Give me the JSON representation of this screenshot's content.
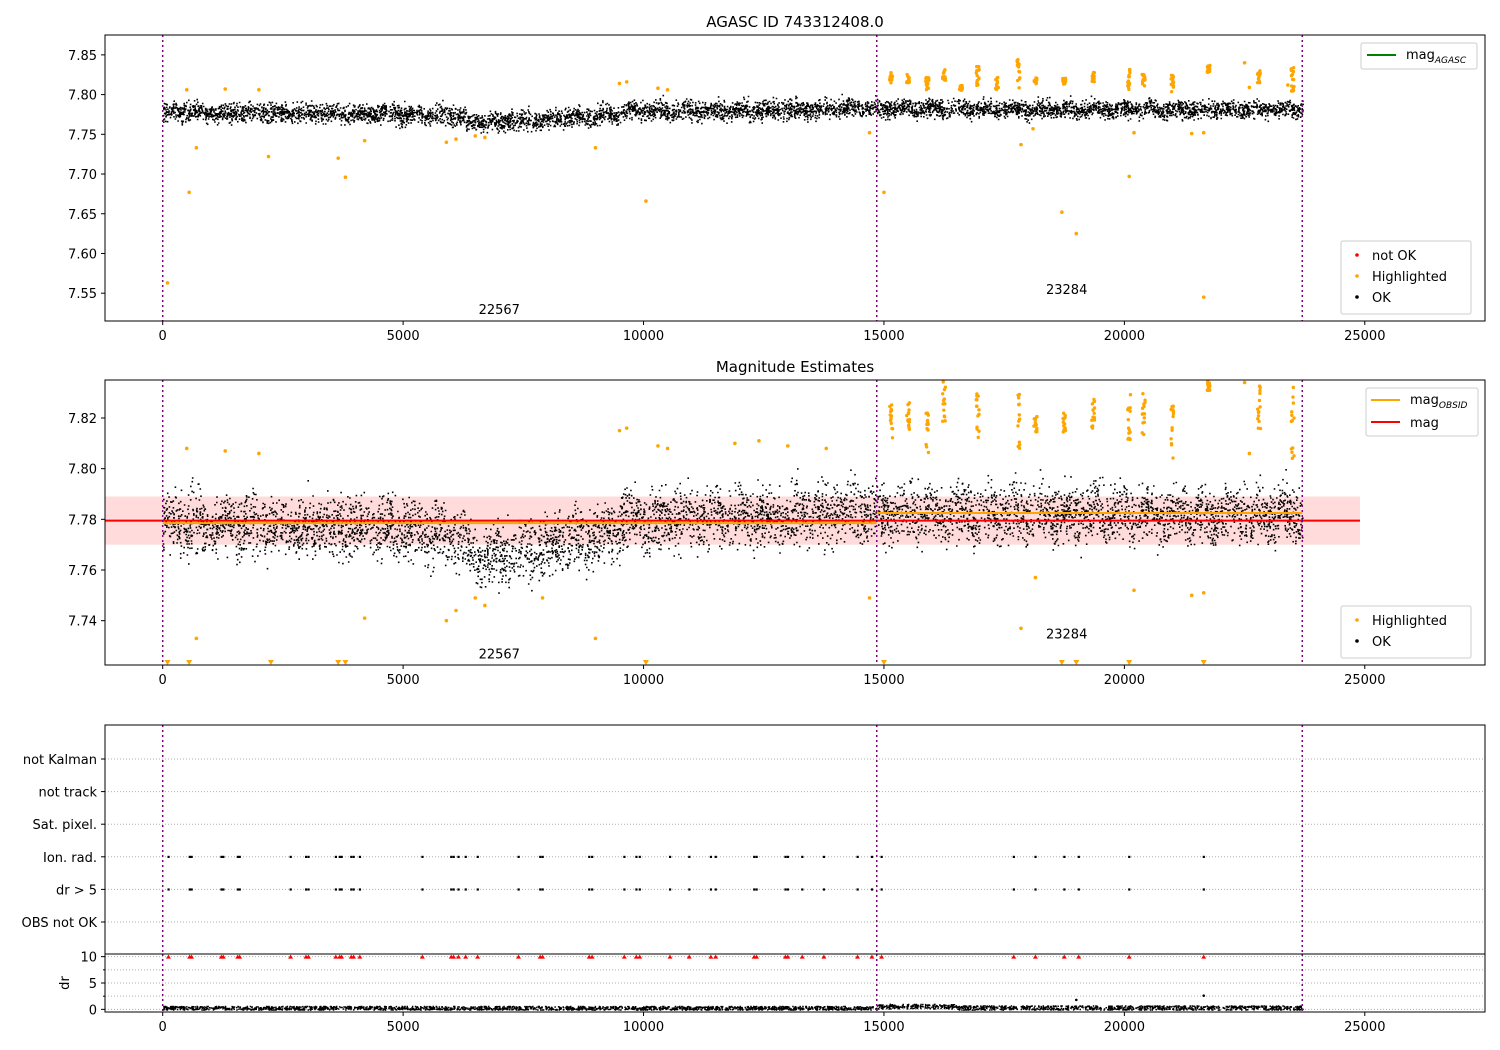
{
  "figure": {
    "x_ticks": [
      0,
      5000,
      10000,
      15000,
      20000,
      25000
    ],
    "xlim": [
      -1200,
      27500
    ],
    "obs_boundaries": [
      0,
      14850,
      23700
    ],
    "boundary_color": "#800080",
    "colors": {
      "ok": "#000000",
      "highlighted": "#ffa500",
      "not_ok": "#ff0000",
      "mag_agasc": "#008000",
      "mag_obsid": "#ffa500",
      "mag": "#ff0000",
      "band": "#ffcccc"
    }
  },
  "chart_data": [
    {
      "type": "scatter",
      "title": "AGASC ID 743312408.0",
      "xlabel": "",
      "ylabel": "",
      "ylim": [
        7.515,
        7.875
      ],
      "y_ticks": [
        "7.55",
        "7.60",
        "7.65",
        "7.70",
        "7.75",
        "7.80",
        "7.85"
      ],
      "y_tick_values": [
        7.55,
        7.6,
        7.65,
        7.7,
        7.75,
        7.8,
        7.85
      ],
      "grid": false,
      "legend_top": {
        "position": "top-right",
        "entries": [
          {
            "label_main": "mag",
            "label_sub": "AGASC",
            "color": "#008000"
          }
        ]
      },
      "legend_bottom": {
        "position": "bottom-right",
        "entries": [
          {
            "label": "not OK",
            "color": "#ff0000"
          },
          {
            "label": "Highlighted",
            "color": "#ffa500"
          },
          {
            "label": "OK",
            "color": "#000000"
          }
        ]
      },
      "annotations": [
        {
          "text": "22567",
          "x": 7000,
          "y": 7.53
        },
        {
          "text": "23284",
          "x": 18800,
          "y": 7.555
        }
      ],
      "ok_segments": [
        {
          "x0": 0,
          "x1": 1500,
          "y0": 7.779,
          "y1": 7.778,
          "spread": 0.012
        },
        {
          "x0": 1500,
          "x1": 4500,
          "y0": 7.778,
          "y1": 7.777,
          "spread": 0.012
        },
        {
          "x0": 4500,
          "x1": 6300,
          "y0": 7.777,
          "y1": 7.774,
          "spread": 0.012
        },
        {
          "x0": 6300,
          "x1": 8200,
          "y0": 7.765,
          "y1": 7.77,
          "spread": 0.012
        },
        {
          "x0": 8200,
          "x1": 9500,
          "y0": 7.772,
          "y1": 7.775,
          "spread": 0.012
        },
        {
          "x0": 9500,
          "x1": 12000,
          "y0": 7.78,
          "y1": 7.781,
          "spread": 0.012
        },
        {
          "x0": 12000,
          "x1": 14850,
          "y0": 7.781,
          "y1": 7.784,
          "spread": 0.012
        },
        {
          "x0": 14850,
          "x1": 23700,
          "y0": 7.783,
          "y1": 7.782,
          "spread": 0.011
        }
      ],
      "highlighted": [
        {
          "x": 100,
          "y": 7.563
        },
        {
          "x": 550,
          "y": 7.677
        },
        {
          "x": 700,
          "y": 7.733
        },
        {
          "x": 500,
          "y": 7.806
        },
        {
          "x": 1300,
          "y": 7.807
        },
        {
          "x": 2200,
          "y": 7.722
        },
        {
          "x": 2000,
          "y": 7.806
        },
        {
          "x": 3650,
          "y": 7.72
        },
        {
          "x": 3800,
          "y": 7.696
        },
        {
          "x": 4200,
          "y": 7.742
        },
        {
          "x": 5900,
          "y": 7.74
        },
        {
          "x": 6100,
          "y": 7.744
        },
        {
          "x": 6500,
          "y": 7.748
        },
        {
          "x": 6700,
          "y": 7.746
        },
        {
          "x": 9000,
          "y": 7.733
        },
        {
          "x": 9500,
          "y": 7.814
        },
        {
          "x": 9650,
          "y": 7.816
        },
        {
          "x": 10050,
          "y": 7.666
        },
        {
          "x": 10300,
          "y": 7.808
        },
        {
          "x": 10500,
          "y": 7.806
        },
        {
          "x": 14700,
          "y": 7.752
        },
        {
          "x": 15000,
          "y": 7.677
        },
        {
          "x": 19000,
          "y": 7.625
        },
        {
          "x": 18700,
          "y": 7.652
        },
        {
          "x": 20100,
          "y": 7.697
        },
        {
          "x": 20200,
          "y": 7.752
        },
        {
          "x": 21650,
          "y": 7.545
        },
        {
          "x": 17850,
          "y": 7.737
        },
        {
          "x": 18100,
          "y": 7.757
        },
        {
          "x": 21400,
          "y": 7.751
        },
        {
          "x": 21650,
          "y": 7.752
        },
        {
          "x": 22600,
          "y": 7.809
        },
        {
          "x": 22500,
          "y": 7.84
        },
        {
          "x": 23400,
          "y": 7.812
        }
      ],
      "highlighted_columns": [
        {
          "x": 15150,
          "y0": 7.812,
          "y1": 7.828
        },
        {
          "x": 15500,
          "y0": 7.815,
          "y1": 7.826
        },
        {
          "x": 15900,
          "y0": 7.806,
          "y1": 7.822
        },
        {
          "x": 16250,
          "y0": 7.818,
          "y1": 7.835
        },
        {
          "x": 16600,
          "y0": 7.804,
          "y1": 7.812
        },
        {
          "x": 16950,
          "y0": 7.81,
          "y1": 7.836
        },
        {
          "x": 17350,
          "y0": 7.804,
          "y1": 7.822
        },
        {
          "x": 17800,
          "y0": 7.808,
          "y1": 7.844
        },
        {
          "x": 18150,
          "y0": 7.813,
          "y1": 7.822
        },
        {
          "x": 18750,
          "y0": 7.813,
          "y1": 7.822
        },
        {
          "x": 19350,
          "y0": 7.816,
          "y1": 7.828
        },
        {
          "x": 20100,
          "y0": 7.806,
          "y1": 7.833
        },
        {
          "x": 20400,
          "y0": 7.808,
          "y1": 7.83
        },
        {
          "x": 21000,
          "y0": 7.803,
          "y1": 7.825
        },
        {
          "x": 21750,
          "y0": 7.828,
          "y1": 7.838
        },
        {
          "x": 22800,
          "y0": 7.815,
          "y1": 7.833
        },
        {
          "x": 23500,
          "y0": 7.804,
          "y1": 7.834
        }
      ]
    },
    {
      "type": "scatter",
      "title": "Magnitude Estimates",
      "xlabel": "",
      "ylabel": "",
      "ylim": [
        7.7225,
        7.835
      ],
      "y_ticks": [
        "7.74",
        "7.76",
        "7.78",
        "7.80",
        "7.82"
      ],
      "y_tick_values": [
        7.74,
        7.76,
        7.78,
        7.8,
        7.82
      ],
      "grid": false,
      "legend_top": {
        "position": "top-right",
        "entries": [
          {
            "label_main": "mag",
            "label_sub": "OBSID",
            "color": "#ffa500"
          },
          {
            "label_main": "mag",
            "label_sub": "",
            "color": "#ff0000"
          }
        ]
      },
      "legend_bottom": {
        "position": "bottom-right",
        "entries": [
          {
            "label": "Highlighted",
            "color": "#ffa500"
          },
          {
            "label": "OK",
            "color": "#000000"
          }
        ]
      },
      "annotations": [
        {
          "text": "22567",
          "x": 7000,
          "y": 7.727
        },
        {
          "text": "23284",
          "x": 18800,
          "y": 7.735
        }
      ],
      "mag_line": {
        "y": 7.7795,
        "x0": -1200,
        "x1": 24900
      },
      "band": {
        "y0": 7.77,
        "y1": 7.789,
        "x0": -1200,
        "x1": 24900
      },
      "obsid_lines": [
        {
          "x0": 0,
          "x1": 14850,
          "y": 7.7785
        },
        {
          "x0": 14850,
          "x1": 23700,
          "y": 7.7825
        }
      ],
      "ok_segments": [
        {
          "x0": 0,
          "x1": 1500,
          "y0": 7.779,
          "y1": 7.778,
          "spread": 0.012
        },
        {
          "x0": 1500,
          "x1": 4500,
          "y0": 7.778,
          "y1": 7.777,
          "spread": 0.012
        },
        {
          "x0": 4500,
          "x1": 6300,
          "y0": 7.777,
          "y1": 7.774,
          "spread": 0.012
        },
        {
          "x0": 6300,
          "x1": 8200,
          "y0": 7.765,
          "y1": 7.77,
          "spread": 0.012
        },
        {
          "x0": 8200,
          "x1": 9500,
          "y0": 7.772,
          "y1": 7.775,
          "spread": 0.012
        },
        {
          "x0": 9500,
          "x1": 12000,
          "y0": 7.78,
          "y1": 7.781,
          "spread": 0.012
        },
        {
          "x0": 12000,
          "x1": 14850,
          "y0": 7.781,
          "y1": 7.784,
          "spread": 0.012
        },
        {
          "x0": 14850,
          "x1": 23700,
          "y0": 7.783,
          "y1": 7.782,
          "spread": 0.011
        }
      ],
      "highlighted": [
        {
          "x": 500,
          "y": 7.808
        },
        {
          "x": 700,
          "y": 7.733
        },
        {
          "x": 1300,
          "y": 7.807
        },
        {
          "x": 2000,
          "y": 7.806
        },
        {
          "x": 4200,
          "y": 7.741
        },
        {
          "x": 5900,
          "y": 7.74
        },
        {
          "x": 6100,
          "y": 7.744
        },
        {
          "x": 6500,
          "y": 7.749
        },
        {
          "x": 6700,
          "y": 7.746
        },
        {
          "x": 7900,
          "y": 7.749
        },
        {
          "x": 9000,
          "y": 7.733
        },
        {
          "x": 9500,
          "y": 7.815
        },
        {
          "x": 9650,
          "y": 7.816
        },
        {
          "x": 10300,
          "y": 7.809
        },
        {
          "x": 10500,
          "y": 7.808
        },
        {
          "x": 11900,
          "y": 7.81
        },
        {
          "x": 12400,
          "y": 7.811
        },
        {
          "x": 13000,
          "y": 7.809
        },
        {
          "x": 13800,
          "y": 7.808
        },
        {
          "x": 14700,
          "y": 7.749
        },
        {
          "x": 17850,
          "y": 7.737
        },
        {
          "x": 18150,
          "y": 7.757
        },
        {
          "x": 20200,
          "y": 7.752
        },
        {
          "x": 21400,
          "y": 7.75
        },
        {
          "x": 21650,
          "y": 7.751
        },
        {
          "x": 22600,
          "y": 7.806
        },
        {
          "x": 22500,
          "y": 7.834
        }
      ],
      "highlighted_columns": [
        {
          "x": 15150,
          "y0": 7.812,
          "y1": 7.828
        },
        {
          "x": 15500,
          "y0": 7.815,
          "y1": 7.826
        },
        {
          "x": 15900,
          "y0": 7.806,
          "y1": 7.822
        },
        {
          "x": 16250,
          "y0": 7.818,
          "y1": 7.835
        },
        {
          "x": 16950,
          "y0": 7.81,
          "y1": 7.835
        },
        {
          "x": 17800,
          "y0": 7.808,
          "y1": 7.835
        },
        {
          "x": 18150,
          "y0": 7.813,
          "y1": 7.822
        },
        {
          "x": 18750,
          "y0": 7.813,
          "y1": 7.822
        },
        {
          "x": 19350,
          "y0": 7.816,
          "y1": 7.828
        },
        {
          "x": 20100,
          "y0": 7.806,
          "y1": 7.833
        },
        {
          "x": 20400,
          "y0": 7.808,
          "y1": 7.83
        },
        {
          "x": 21000,
          "y0": 7.803,
          "y1": 7.825
        },
        {
          "x": 21750,
          "y0": 7.83,
          "y1": 7.835
        },
        {
          "x": 22800,
          "y0": 7.815,
          "y1": 7.833
        },
        {
          "x": 23500,
          "y0": 7.804,
          "y1": 7.835
        }
      ],
      "clipped_low_markers": [
        100,
        550,
        2250,
        3650,
        3800,
        10050,
        15000,
        18700,
        19000,
        20100,
        21650
      ]
    },
    {
      "type": "scatter",
      "title": "",
      "xlabel": "",
      "ylabel": "",
      "categories": [
        "not Kalman",
        "not track",
        "Sat. pixel.",
        "Ion. rad.",
        "dr > 5",
        "OBS not OK"
      ],
      "grid": true,
      "flag_x": [
        120,
        560,
        600,
        1220,
        1260,
        1560,
        1600,
        2660,
        2980,
        3030,
        3600,
        3680,
        3720,
        3920,
        3970,
        4100,
        5400,
        6000,
        6050,
        6150,
        6300,
        6550,
        7400,
        7850,
        7900,
        8870,
        8930,
        9600,
        9850,
        9920,
        10550,
        10950,
        11400,
        11500,
        12300,
        12350,
        12950,
        13000,
        13300,
        13750,
        14450,
        14750,
        14950,
        17700,
        18150,
        18750,
        19050,
        20100,
        21650
      ],
      "flag_rows": [
        "Ion. rad.",
        "dr > 5"
      ]
    },
    {
      "type": "scatter",
      "title": "",
      "xlabel": "",
      "ylabel": "dr",
      "ylim": [
        -0.5,
        10.5
      ],
      "y_ticks": [
        "0",
        "5",
        "10"
      ],
      "y_tick_values": [
        0,
        5,
        10
      ],
      "grid": true,
      "baseline_segments": [
        {
          "x0": 0,
          "x1": 14850,
          "y": 0.35,
          "spread": 0.35
        },
        {
          "x0": 14850,
          "x1": 16500,
          "y": 0.65,
          "spread": 0.45
        },
        {
          "x0": 16500,
          "x1": 23700,
          "y": 0.4,
          "spread": 0.4
        }
      ],
      "outliers": [
        {
          "x": 19000,
          "y": 1.8
        },
        {
          "x": 21650,
          "y": 2.6
        }
      ],
      "clipped_high_x": [
        120,
        560,
        600,
        1220,
        1260,
        1560,
        1600,
        2660,
        2980,
        3030,
        3600,
        3680,
        3720,
        3920,
        3970,
        4100,
        5400,
        6000,
        6050,
        6150,
        6300,
        6550,
        7400,
        7850,
        7900,
        8870,
        8930,
        9600,
        9850,
        9920,
        10550,
        10950,
        11400,
        11500,
        12300,
        12350,
        12950,
        13000,
        13300,
        13750,
        14450,
        14750,
        14950,
        17700,
        18150,
        18750,
        19050,
        20100,
        21650
      ]
    }
  ]
}
